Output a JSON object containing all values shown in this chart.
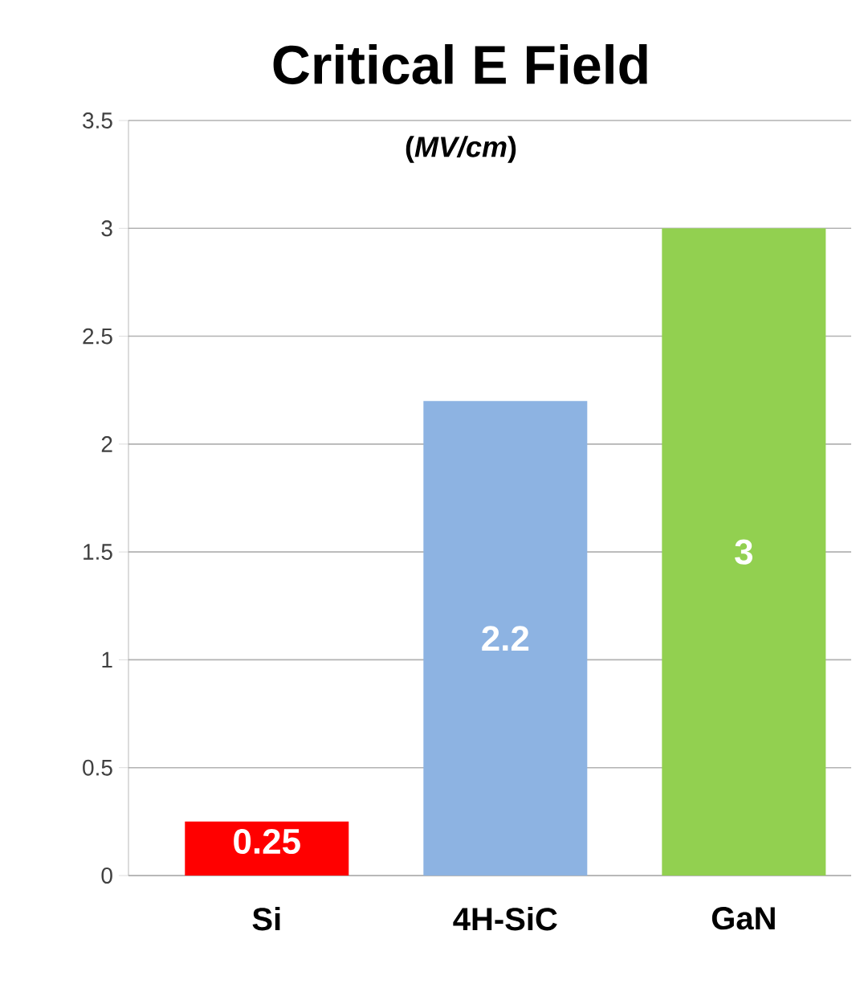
{
  "chart_data": {
    "type": "bar",
    "title": "Critical E Field",
    "subtitle": "(*MV/cm*)",
    "categories": [
      "Si",
      "4H-SiC",
      "GaN"
    ],
    "values": [
      0.25,
      2.2,
      3
    ],
    "colors": [
      "#ff0000",
      "#8db3e2",
      "#92d050"
    ],
    "ylim": [
      0,
      3.5
    ],
    "yticks": [
      0,
      {
        "value": 0.5,
        "label": "0.5"
      },
      1,
      {
        "value": 1.5,
        "label": "1.5"
      },
      2,
      {
        "value": 2.5,
        "label": "2.5"
      },
      3,
      {
        "value": 3.5,
        "label": "3.5"
      }
    ],
    "grid": "y",
    "data_labels": true
  }
}
